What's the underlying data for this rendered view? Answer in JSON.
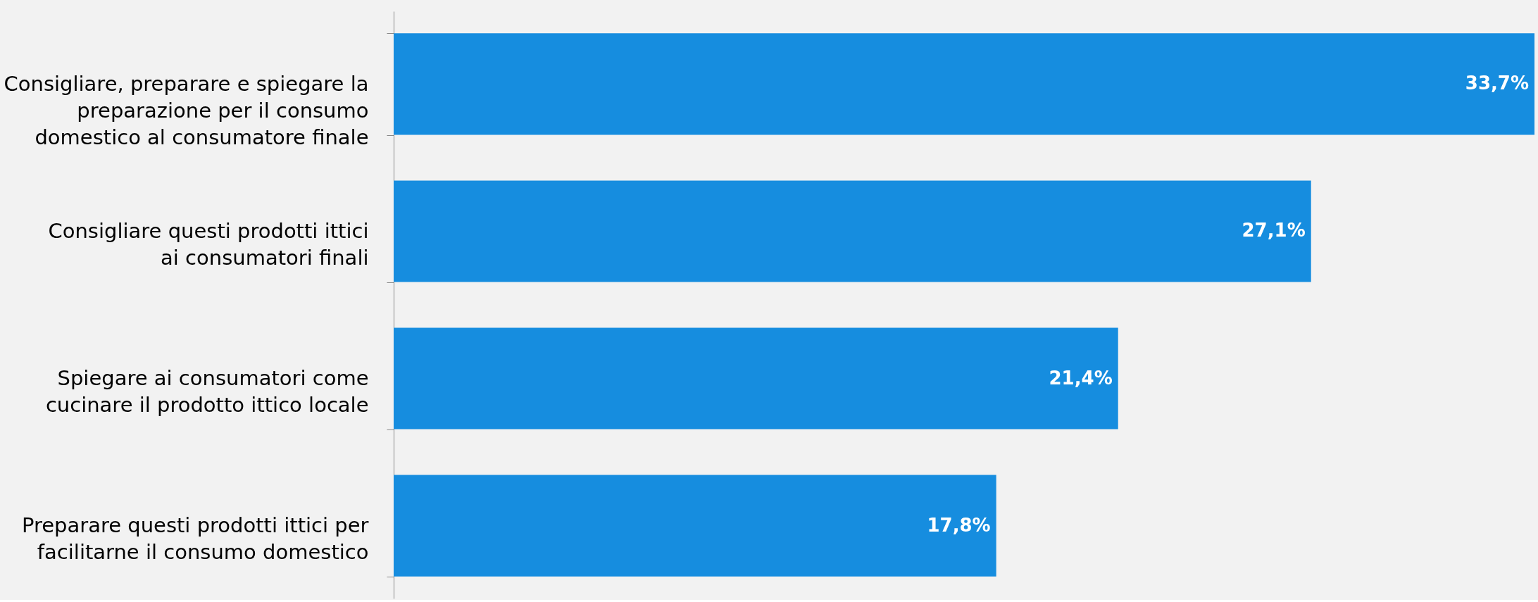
{
  "chart_data": {
    "type": "bar",
    "orientation": "horizontal",
    "categories": [
      "Consigliare, preparare e spiegare la preparazione per il consumo domestico al consumatore finale",
      "Consigliare questi prodotti ittici ai consumatori finali",
      "Spiegare ai consumatori come cucinare il prodotto ittico locale",
      "Preparare questi prodotti ittici per facilitarne il consumo domestico"
    ],
    "values": [
      33.7,
      27.1,
      21.4,
      17.8
    ],
    "value_labels": [
      "33,7%",
      "27,1%",
      "21,4%",
      "17,8%"
    ],
    "color": "#168ddf",
    "xlim": [
      0,
      33.7
    ],
    "tick_labels": "y"
  }
}
